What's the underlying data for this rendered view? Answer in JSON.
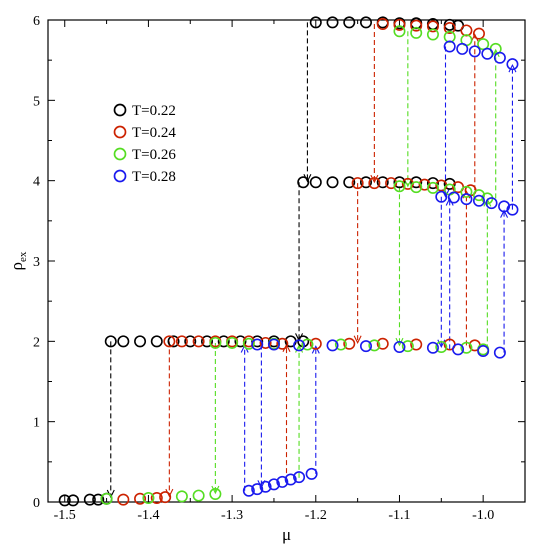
{
  "chart_data": {
    "type": "scatter",
    "title": "",
    "xlabel": "μ",
    "ylabel_main": "ρ",
    "ylabel_sub": "ex",
    "xlim": [
      -1.52,
      -0.95
    ],
    "ylim": [
      0,
      6
    ],
    "xticks": [
      -1.5,
      -1.4,
      -1.3,
      -1.2,
      -1.1,
      -1.0
    ],
    "xtick_labels": [
      "-1.5",
      "-1.4",
      "-1.3",
      "-1.2",
      "-1.1",
      "-1.0"
    ],
    "yticks": [
      0,
      1,
      2,
      3,
      4,
      5,
      6
    ],
    "ytick_labels": [
      "0",
      "1",
      "2",
      "3",
      "4",
      "5",
      "6"
    ],
    "grid": false,
    "legend_position": "upper-left",
    "series": [
      {
        "name": "T=0.22",
        "color": "#000000",
        "points": [
          {
            "x": -1.5,
            "y": 0.02
          },
          {
            "x": -1.49,
            "y": 0.02
          },
          {
            "x": -1.47,
            "y": 0.03
          },
          {
            "x": -1.46,
            "y": 0.03
          },
          {
            "x": -1.45,
            "y": 0.04
          },
          {
            "x": -1.445,
            "y": 2.0
          },
          {
            "x": -1.43,
            "y": 2.0
          },
          {
            "x": -1.41,
            "y": 2.0
          },
          {
            "x": -1.39,
            "y": 2.0
          },
          {
            "x": -1.37,
            "y": 2.0
          },
          {
            "x": -1.35,
            "y": 2.0
          },
          {
            "x": -1.33,
            "y": 2.0
          },
          {
            "x": -1.31,
            "y": 2.0
          },
          {
            "x": -1.29,
            "y": 2.0
          },
          {
            "x": -1.27,
            "y": 2.0
          },
          {
            "x": -1.25,
            "y": 2.0
          },
          {
            "x": -1.23,
            "y": 2.0
          },
          {
            "x": -1.215,
            "y": 2.0
          },
          {
            "x": -1.215,
            "y": 3.98
          },
          {
            "x": -1.2,
            "y": 3.98
          },
          {
            "x": -1.18,
            "y": 3.98
          },
          {
            "x": -1.16,
            "y": 3.98
          },
          {
            "x": -1.14,
            "y": 3.98
          },
          {
            "x": -1.12,
            "y": 3.98
          },
          {
            "x": -1.1,
            "y": 3.98
          },
          {
            "x": -1.08,
            "y": 3.98
          },
          {
            "x": -1.06,
            "y": 3.97
          },
          {
            "x": -1.04,
            "y": 3.96
          },
          {
            "x": -1.2,
            "y": 5.97
          },
          {
            "x": -1.18,
            "y": 5.97
          },
          {
            "x": -1.16,
            "y": 5.97
          },
          {
            "x": -1.14,
            "y": 5.97
          },
          {
            "x": -1.12,
            "y": 5.97
          },
          {
            "x": -1.1,
            "y": 5.96
          },
          {
            "x": -1.08,
            "y": 5.96
          },
          {
            "x": -1.06,
            "y": 5.95
          },
          {
            "x": -1.04,
            "y": 5.94
          },
          {
            "x": -1.03,
            "y": 5.93
          }
        ]
      },
      {
        "name": "T=0.24",
        "color": "#cc2200",
        "points": [
          {
            "x": -1.43,
            "y": 0.03
          },
          {
            "x": -1.41,
            "y": 0.04
          },
          {
            "x": -1.39,
            "y": 0.05
          },
          {
            "x": -1.38,
            "y": 0.06
          },
          {
            "x": -1.375,
            "y": 2.0
          },
          {
            "x": -1.36,
            "y": 2.0
          },
          {
            "x": -1.34,
            "y": 2.0
          },
          {
            "x": -1.32,
            "y": 2.0
          },
          {
            "x": -1.3,
            "y": 2.0
          },
          {
            "x": -1.28,
            "y": 2.0
          },
          {
            "x": -1.26,
            "y": 1.98
          },
          {
            "x": -1.24,
            "y": 1.97
          },
          {
            "x": -1.2,
            "y": 1.97
          },
          {
            "x": -1.16,
            "y": 1.97
          },
          {
            "x": -1.12,
            "y": 1.97
          },
          {
            "x": -1.08,
            "y": 1.96
          },
          {
            "x": -1.04,
            "y": 1.96
          },
          {
            "x": -1.01,
            "y": 1.95
          },
          {
            "x": -1.15,
            "y": 3.97
          },
          {
            "x": -1.13,
            "y": 3.97
          },
          {
            "x": -1.11,
            "y": 3.97
          },
          {
            "x": -1.09,
            "y": 3.96
          },
          {
            "x": -1.07,
            "y": 3.95
          },
          {
            "x": -1.05,
            "y": 3.94
          },
          {
            "x": -1.03,
            "y": 3.92
          },
          {
            "x": -1.015,
            "y": 3.88
          },
          {
            "x": -1.12,
            "y": 5.95
          },
          {
            "x": -1.1,
            "y": 5.94
          },
          {
            "x": -1.08,
            "y": 5.93
          },
          {
            "x": -1.06,
            "y": 5.92
          },
          {
            "x": -1.04,
            "y": 5.9
          },
          {
            "x": -1.02,
            "y": 5.87
          },
          {
            "x": -1.005,
            "y": 5.83
          }
        ]
      },
      {
        "name": "T=0.26",
        "color": "#55dd22",
        "points": [
          {
            "x": -1.45,
            "y": 0.04
          },
          {
            "x": -1.4,
            "y": 0.05
          },
          {
            "x": -1.36,
            "y": 0.07
          },
          {
            "x": -1.34,
            "y": 0.08
          },
          {
            "x": -1.32,
            "y": 0.1
          },
          {
            "x": -1.32,
            "y": 1.98
          },
          {
            "x": -1.3,
            "y": 1.98
          },
          {
            "x": -1.28,
            "y": 1.97
          },
          {
            "x": -1.25,
            "y": 1.97
          },
          {
            "x": -1.21,
            "y": 1.96
          },
          {
            "x": -1.17,
            "y": 1.96
          },
          {
            "x": -1.13,
            "y": 1.95
          },
          {
            "x": -1.09,
            "y": 1.94
          },
          {
            "x": -1.05,
            "y": 1.93
          },
          {
            "x": -1.02,
            "y": 1.92
          },
          {
            "x": -1.0,
            "y": 1.9
          },
          {
            "x": -1.1,
            "y": 3.93
          },
          {
            "x": -1.08,
            "y": 3.92
          },
          {
            "x": -1.06,
            "y": 3.91
          },
          {
            "x": -1.04,
            "y": 3.89
          },
          {
            "x": -1.02,
            "y": 3.86
          },
          {
            "x": -1.005,
            "y": 3.82
          },
          {
            "x": -0.995,
            "y": 3.78
          },
          {
            "x": -1.1,
            "y": 5.86
          },
          {
            "x": -1.08,
            "y": 5.84
          },
          {
            "x": -1.06,
            "y": 5.82
          },
          {
            "x": -1.04,
            "y": 5.79
          },
          {
            "x": -1.02,
            "y": 5.75
          },
          {
            "x": -1.0,
            "y": 5.7
          },
          {
            "x": -0.985,
            "y": 5.64
          }
        ]
      },
      {
        "name": "T=0.28",
        "color": "#1a1aee",
        "points": [
          {
            "x": -1.28,
            "y": 0.14
          },
          {
            "x": -1.27,
            "y": 0.16
          },
          {
            "x": -1.26,
            "y": 0.19
          },
          {
            "x": -1.25,
            "y": 0.22
          },
          {
            "x": -1.24,
            "y": 0.25
          },
          {
            "x": -1.23,
            "y": 0.28
          },
          {
            "x": -1.22,
            "y": 0.31
          },
          {
            "x": -1.205,
            "y": 0.35
          },
          {
            "x": -1.27,
            "y": 1.96
          },
          {
            "x": -1.25,
            "y": 1.96
          },
          {
            "x": -1.22,
            "y": 1.95
          },
          {
            "x": -1.18,
            "y": 1.95
          },
          {
            "x": -1.14,
            "y": 1.94
          },
          {
            "x": -1.1,
            "y": 1.93
          },
          {
            "x": -1.06,
            "y": 1.92
          },
          {
            "x": -1.03,
            "y": 1.9
          },
          {
            "x": -1.0,
            "y": 1.88
          },
          {
            "x": -0.98,
            "y": 1.86
          },
          {
            "x": -1.05,
            "y": 3.8
          },
          {
            "x": -1.035,
            "y": 3.79
          },
          {
            "x": -1.02,
            "y": 3.77
          },
          {
            "x": -1.005,
            "y": 3.75
          },
          {
            "x": -0.99,
            "y": 3.72
          },
          {
            "x": -0.975,
            "y": 3.68
          },
          {
            "x": -0.965,
            "y": 3.64
          },
          {
            "x": -1.04,
            "y": 5.67
          },
          {
            "x": -1.025,
            "y": 5.64
          },
          {
            "x": -1.01,
            "y": 5.61
          },
          {
            "x": -0.995,
            "y": 5.58
          },
          {
            "x": -0.98,
            "y": 5.53
          },
          {
            "x": -0.965,
            "y": 5.45
          }
        ]
      }
    ],
    "arrows": [
      {
        "x": -1.445,
        "from": 2.0,
        "to": 0.05,
        "color": "#000000"
      },
      {
        "x": -1.22,
        "from": 3.98,
        "to": 2.0,
        "color": "#000000"
      },
      {
        "x": -1.21,
        "from": 5.97,
        "to": 3.98,
        "color": "#000000"
      },
      {
        "x": -1.375,
        "from": 2.0,
        "to": 0.06,
        "color": "#cc2200"
      },
      {
        "x": -1.15,
        "from": 3.97,
        "to": 1.97,
        "color": "#cc2200"
      },
      {
        "x": -1.13,
        "from": 5.95,
        "to": 3.97,
        "color": "#cc2200"
      },
      {
        "x": -1.235,
        "from": 0.26,
        "to": 1.97,
        "color": "#cc2200"
      },
      {
        "x": -1.02,
        "from": 1.95,
        "to": 3.88,
        "color": "#cc2200"
      },
      {
        "x": -1.01,
        "from": 3.88,
        "to": 5.83,
        "color": "#cc2200"
      },
      {
        "x": -1.32,
        "from": 1.98,
        "to": 0.1,
        "color": "#55dd22"
      },
      {
        "x": -1.1,
        "from": 3.93,
        "to": 1.94,
        "color": "#55dd22"
      },
      {
        "x": -1.09,
        "from": 5.86,
        "to": 3.92,
        "color": "#55dd22"
      },
      {
        "x": -1.22,
        "from": 0.3,
        "to": 1.96,
        "color": "#55dd22"
      },
      {
        "x": -0.995,
        "from": 1.9,
        "to": 3.78,
        "color": "#55dd22"
      },
      {
        "x": -0.985,
        "from": 3.78,
        "to": 5.64,
        "color": "#55dd22"
      },
      {
        "x": -1.265,
        "from": 1.96,
        "to": 0.17,
        "color": "#1a1aee"
      },
      {
        "x": -1.05,
        "from": 3.8,
        "to": 1.92,
        "color": "#1a1aee"
      },
      {
        "x": -1.045,
        "from": 5.67,
        "to": 3.79,
        "color": "#1a1aee"
      },
      {
        "x": -1.285,
        "from": 0.14,
        "to": 1.96,
        "color": "#1a1aee"
      },
      {
        "x": -1.2,
        "from": 0.35,
        "to": 1.95,
        "color": "#1a1aee"
      },
      {
        "x": -1.04,
        "from": 1.9,
        "to": 3.79,
        "color": "#1a1aee"
      },
      {
        "x": -0.975,
        "from": 1.86,
        "to": 3.64,
        "color": "#1a1aee"
      },
      {
        "x": -0.965,
        "from": 3.64,
        "to": 5.45,
        "color": "#1a1aee"
      }
    ]
  }
}
